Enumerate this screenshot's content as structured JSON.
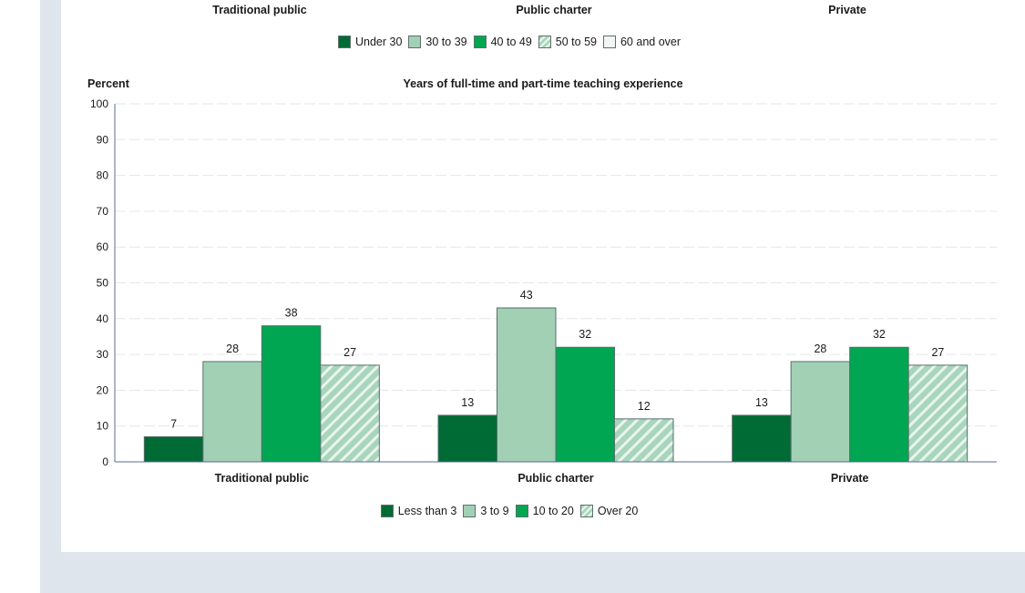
{
  "top_section": {
    "group_labels": [
      "Traditional public",
      "Public charter",
      "Private"
    ],
    "legend": [
      "Under 30",
      "30 to 39",
      "40 to 49",
      "50 to 59",
      "60 and over"
    ]
  },
  "chart_data": {
    "type": "bar",
    "title": "Years of full-time and part-time teaching experience",
    "ylabel": "Percent",
    "xlabel": "",
    "ylim": [
      0,
      100
    ],
    "yticks": [
      0,
      10,
      20,
      30,
      40,
      50,
      60,
      70,
      80,
      90,
      100
    ],
    "grid": true,
    "legend_position": "bottom",
    "categories": [
      "Traditional public",
      "Public charter",
      "Private"
    ],
    "series": [
      {
        "name": "Less than 3",
        "values": [
          7,
          13,
          13
        ],
        "labels": [
          "7",
          "13",
          "13"
        ]
      },
      {
        "name": "3 to 9",
        "values": [
          28,
          43,
          28
        ],
        "labels": [
          "28",
          "43",
          "28"
        ]
      },
      {
        "name": "10 to 20",
        "values": [
          38,
          32,
          32
        ],
        "labels": [
          "38",
          "32",
          "32"
        ]
      },
      {
        "name": "Over 20",
        "values": [
          27,
          12,
          27
        ],
        "labels": [
          "27",
          "12",
          "27"
        ]
      }
    ]
  },
  "bottom_legend": [
    "Less than 3",
    "3 to 9",
    "10 to 20",
    "Over 20"
  ],
  "colors": {
    "series_0": "#006b35",
    "series_1": "#a2d0b5",
    "series_2": "#00a651",
    "series_3_light": "#e9f5ee",
    "series_3_dark": "#a8d5bb",
    "axis": "#5a6e8c",
    "grid": "#e6e6e6"
  }
}
